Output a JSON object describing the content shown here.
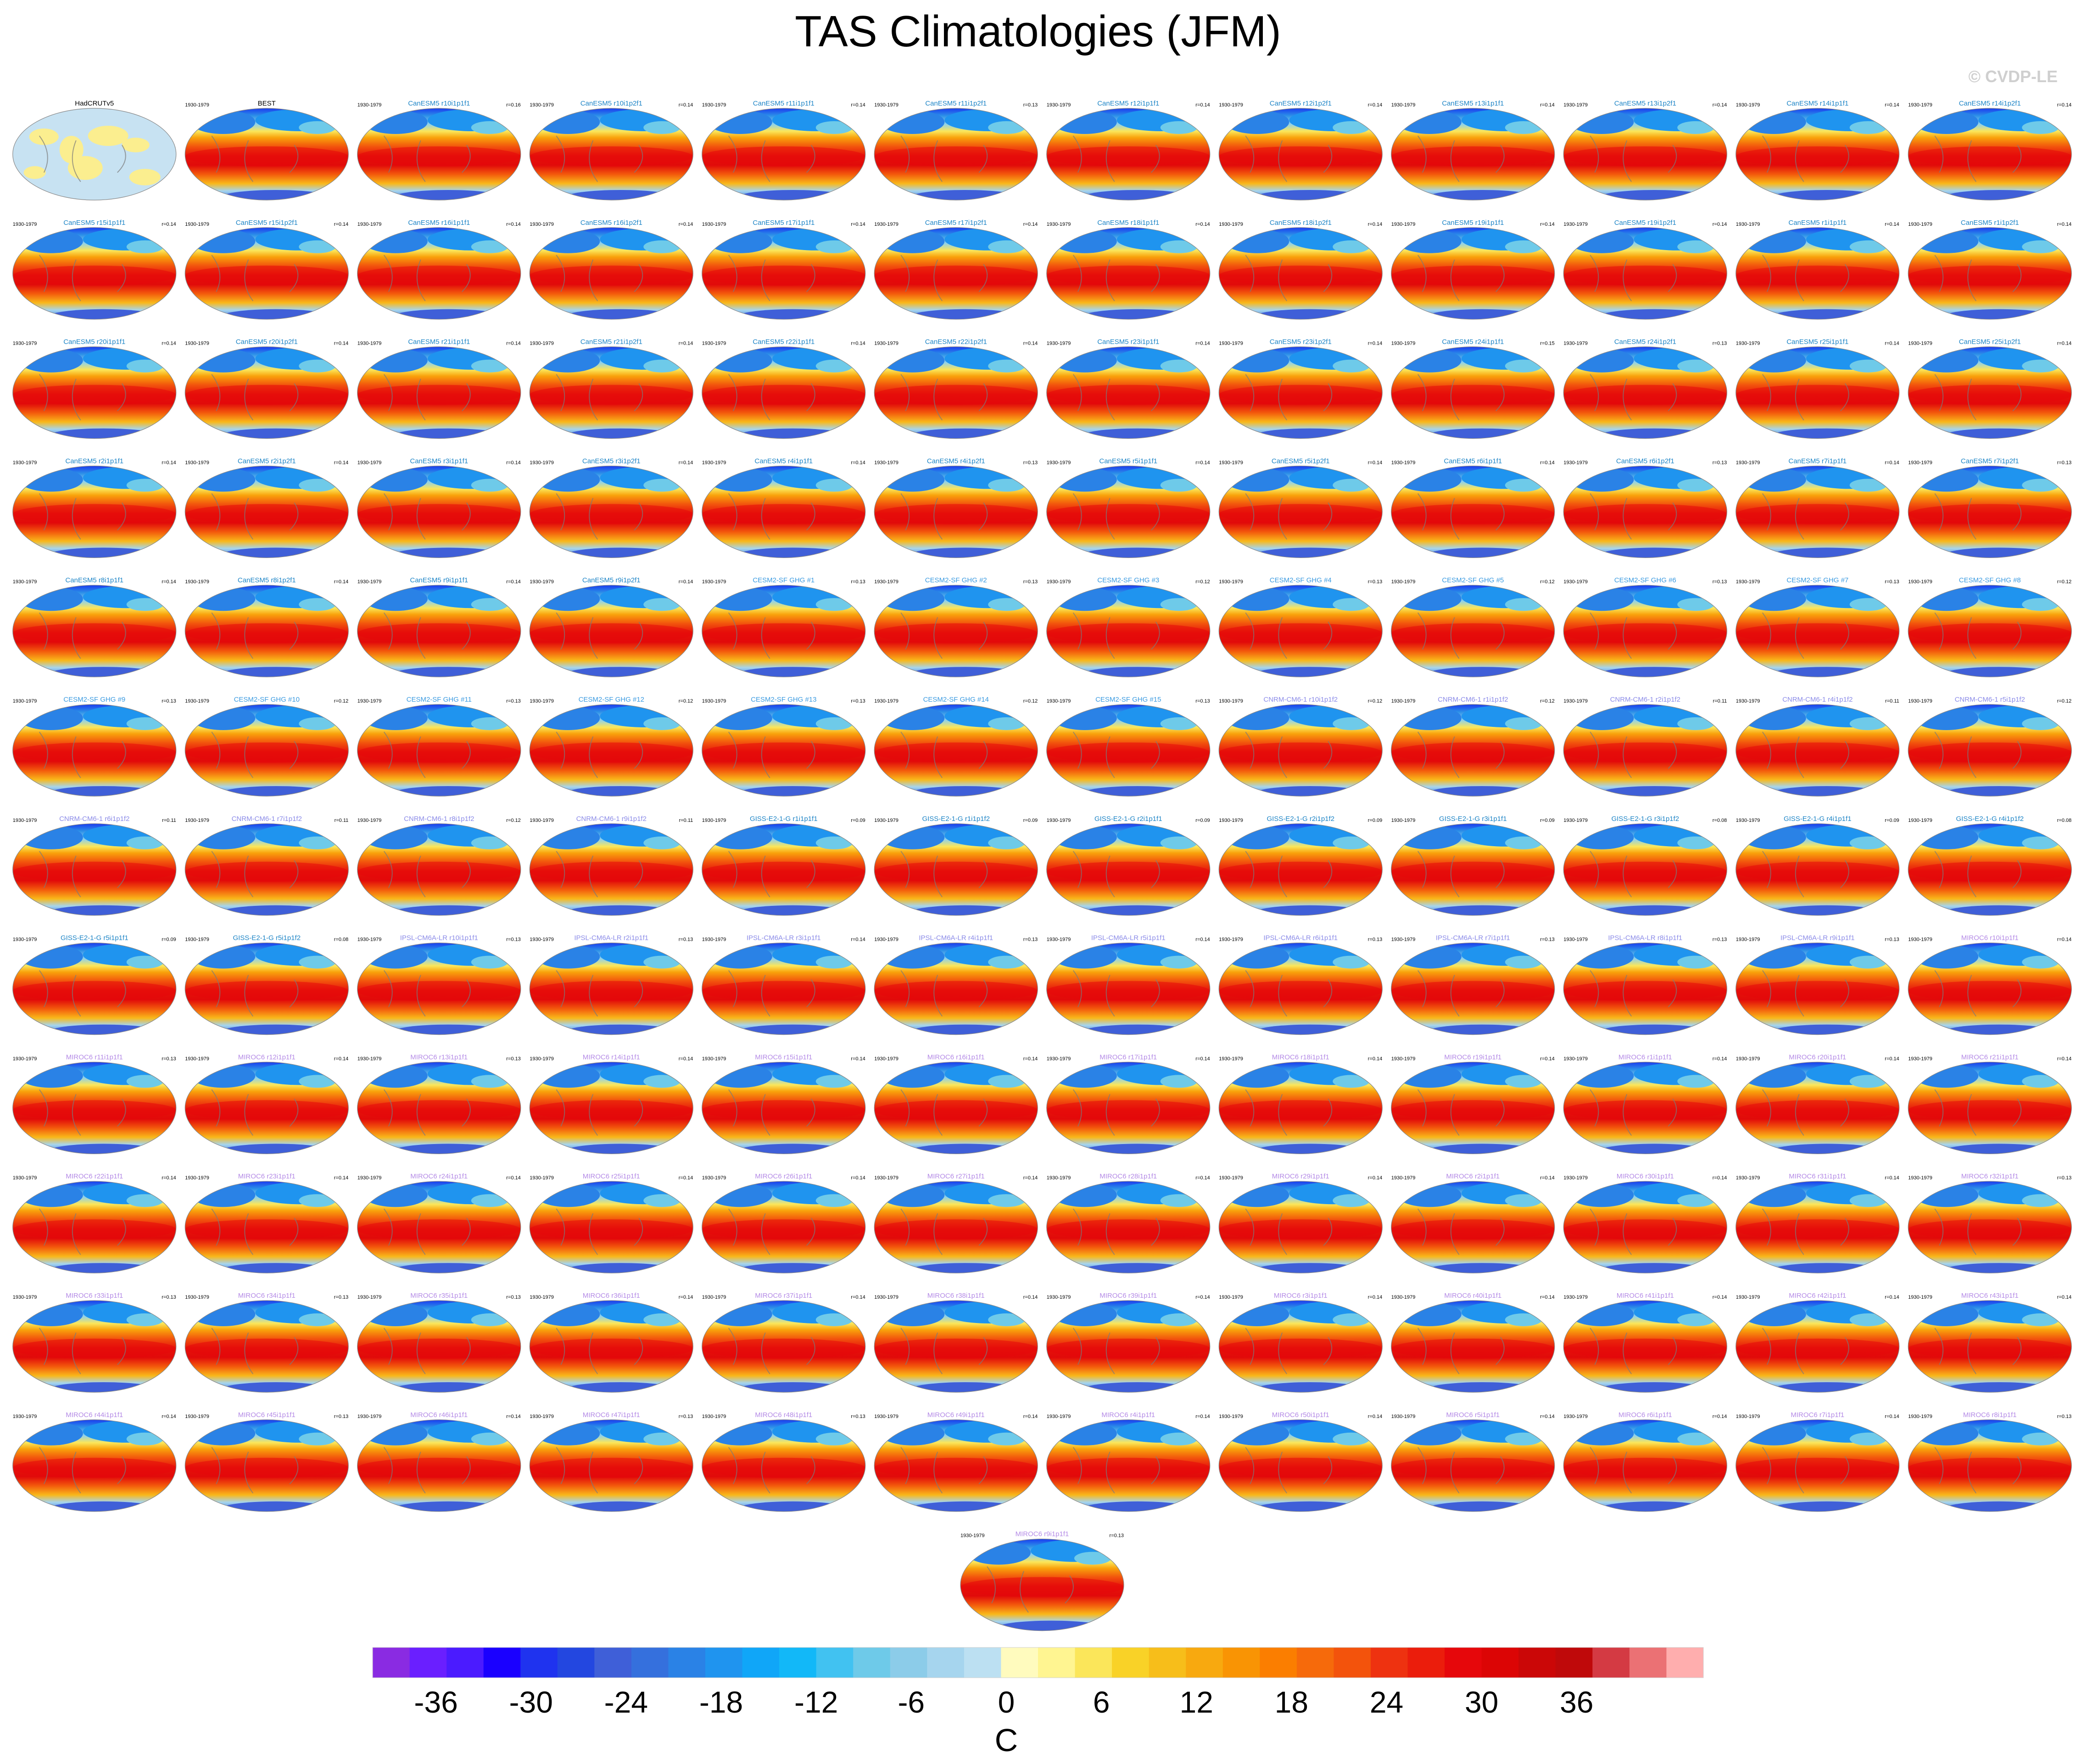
{
  "title": "TAS Climatologies (JFM)",
  "watermark": "© CVDP-LE",
  "period_label": "1930-1979",
  "colors": {
    "background": "#ffffff",
    "land_mask": "#fbee8f",
    "ocean_mask": "#c7e2f2",
    "coast": "#7a7a7a",
    "title_obs": "#000000",
    "title_canesm": "#1c84c6",
    "title_cesm": "#3a9ae0",
    "title_ipsl": "#8b8be8",
    "title_miroc": "#b48ae6"
  },
  "chart_data": {
    "type": "heatmap",
    "variable": "TAS",
    "season": "JFM",
    "colorbar": {
      "unit": "C",
      "ticks": [
        -36,
        -30,
        -24,
        -18,
        -12,
        -6,
        0,
        6,
        12,
        18,
        24,
        30,
        36
      ],
      "min": -40,
      "max": 44,
      "step": 2,
      "colors": [
        "#8a2be2",
        "#6a1fff",
        "#4b1bff",
        "#1a00ff",
        "#1f33ef",
        "#2347e0",
        "#3f5fd8",
        "#3570dd",
        "#2a82e6",
        "#1f94ef",
        "#10a6f8",
        "#12b8f8",
        "#41c2f1",
        "#6ecae9",
        "#8ccce9",
        "#a6d5ee",
        "#bce0f2",
        "#fffbbe",
        "#fff591",
        "#fbe65a",
        "#f9d227",
        "#f7be1a",
        "#f8a90f",
        "#f99404",
        "#fb7e00",
        "#f66a0b",
        "#f3530c",
        "#ee3210",
        "#eb1d0c",
        "#e6070b",
        "#dc0505",
        "#cb0707",
        "#bf090a",
        "#d43a43",
        "#eb7174",
        "#ffaeae"
      ]
    },
    "panels": [
      {
        "title": "HadCRUTv5",
        "r": "",
        "kind": "obs"
      },
      {
        "title": "BEST",
        "r": "",
        "kind": "obs"
      },
      {
        "title": "CanESM5 r10i1p1f1",
        "r": "r=0.16",
        "kind": "canesm"
      },
      {
        "title": "CanESM5 r10i1p2f1",
        "r": "r=0.14",
        "kind": "canesm"
      },
      {
        "title": "CanESM5 r11i1p1f1",
        "r": "r=0.14",
        "kind": "canesm"
      },
      {
        "title": "CanESM5 r11i1p2f1",
        "r": "r=0.13",
        "kind": "canesm"
      },
      {
        "title": "CanESM5 r12i1p1f1",
        "r": "r=0.14",
        "kind": "canesm"
      },
      {
        "title": "CanESM5 r12i1p2f1",
        "r": "r=0.14",
        "kind": "canesm"
      },
      {
        "title": "CanESM5 r13i1p1f1",
        "r": "r=0.14",
        "kind": "canesm"
      },
      {
        "title": "CanESM5 r13i1p2f1",
        "r": "r=0.14",
        "kind": "canesm"
      },
      {
        "title": "CanESM5 r14i1p1f1",
        "r": "r=0.14",
        "kind": "canesm"
      },
      {
        "title": "CanESM5 r14i1p2f1",
        "r": "r=0.14",
        "kind": "canesm"
      },
      {
        "title": "CanESM5 r15i1p1f1",
        "r": "r=0.14",
        "kind": "canesm"
      },
      {
        "title": "CanESM5 r15i1p2f1",
        "r": "r=0.14",
        "kind": "canesm"
      },
      {
        "title": "CanESM5 r16i1p1f1",
        "r": "r=0.14",
        "kind": "canesm"
      },
      {
        "title": "CanESM5 r16i1p2f1",
        "r": "r=0.14",
        "kind": "canesm"
      },
      {
        "title": "CanESM5 r17i1p1f1",
        "r": "r=0.14",
        "kind": "canesm"
      },
      {
        "title": "CanESM5 r17i1p2f1",
        "r": "r=0.14",
        "kind": "canesm"
      },
      {
        "title": "CanESM5 r18i1p1f1",
        "r": "r=0.14",
        "kind": "canesm"
      },
      {
        "title": "CanESM5 r18i1p2f1",
        "r": "r=0.14",
        "kind": "canesm"
      },
      {
        "title": "CanESM5 r19i1p1f1",
        "r": "r=0.14",
        "kind": "canesm"
      },
      {
        "title": "CanESM5 r19i1p2f1",
        "r": "r=0.14",
        "kind": "canesm"
      },
      {
        "title": "CanESM5 r1i1p1f1",
        "r": "r=0.14",
        "kind": "canesm"
      },
      {
        "title": "CanESM5 r1i1p2f1",
        "r": "r=0.14",
        "kind": "canesm"
      },
      {
        "title": "CanESM5 r20i1p1f1",
        "r": "r=0.14",
        "kind": "canesm"
      },
      {
        "title": "CanESM5 r20i1p2f1",
        "r": "r=0.14",
        "kind": "canesm"
      },
      {
        "title": "CanESM5 r21i1p1f1",
        "r": "r=0.14",
        "kind": "canesm"
      },
      {
        "title": "CanESM5 r21i1p2f1",
        "r": "r=0.14",
        "kind": "canesm"
      },
      {
        "title": "CanESM5 r22i1p1f1",
        "r": "r=0.14",
        "kind": "canesm"
      },
      {
        "title": "CanESM5 r22i1p2f1",
        "r": "r=0.14",
        "kind": "canesm"
      },
      {
        "title": "CanESM5 r23i1p1f1",
        "r": "r=0.14",
        "kind": "canesm"
      },
      {
        "title": "CanESM5 r23i1p2f1",
        "r": "r=0.14",
        "kind": "canesm"
      },
      {
        "title": "CanESM5 r24i1p1f1",
        "r": "r=0.15",
        "kind": "canesm"
      },
      {
        "title": "CanESM5 r24i1p2f1",
        "r": "r=0.13",
        "kind": "canesm"
      },
      {
        "title": "CanESM5 r25i1p1f1",
        "r": "r=0.14",
        "kind": "canesm"
      },
      {
        "title": "CanESM5 r25i1p2f1",
        "r": "r=0.14",
        "kind": "canesm"
      },
      {
        "title": "CanESM5 r2i1p1f1",
        "r": "r=0.14",
        "kind": "canesm"
      },
      {
        "title": "CanESM5 r2i1p2f1",
        "r": "r=0.14",
        "kind": "canesm"
      },
      {
        "title": "CanESM5 r3i1p1f1",
        "r": "r=0.14",
        "kind": "canesm"
      },
      {
        "title": "CanESM5 r3i1p2f1",
        "r": "r=0.14",
        "kind": "canesm"
      },
      {
        "title": "CanESM5 r4i1p1f1",
        "r": "r=0.14",
        "kind": "canesm"
      },
      {
        "title": "CanESM5 r4i1p2f1",
        "r": "r=0.13",
        "kind": "canesm"
      },
      {
        "title": "CanESM5 r5i1p1f1",
        "r": "r=0.14",
        "kind": "canesm"
      },
      {
        "title": "CanESM5 r5i1p2f1",
        "r": "r=0.14",
        "kind": "canesm"
      },
      {
        "title": "CanESM5 r6i1p1f1",
        "r": "r=0.14",
        "kind": "canesm"
      },
      {
        "title": "CanESM5 r6i1p2f1",
        "r": "r=0.13",
        "kind": "canesm"
      },
      {
        "title": "CanESM5 r7i1p1f1",
        "r": "r=0.14",
        "kind": "canesm"
      },
      {
        "title": "CanESM5 r7i1p2f1",
        "r": "r=0.13",
        "kind": "canesm"
      },
      {
        "title": "CanESM5 r8i1p1f1",
        "r": "r=0.14",
        "kind": "canesm"
      },
      {
        "title": "CanESM5 r8i1p2f1",
        "r": "r=0.14",
        "kind": "canesm"
      },
      {
        "title": "CanESM5 r9i1p1f1",
        "r": "r=0.14",
        "kind": "canesm"
      },
      {
        "title": "CanESM5 r9i1p2f1",
        "r": "r=0.14",
        "kind": "canesm"
      },
      {
        "title": "CESM2-SF GHG #1",
        "r": "r=0.13",
        "kind": "cesm"
      },
      {
        "title": "CESM2-SF GHG #2",
        "r": "r=0.13",
        "kind": "cesm"
      },
      {
        "title": "CESM2-SF GHG #3",
        "r": "r=0.12",
        "kind": "cesm"
      },
      {
        "title": "CESM2-SF GHG #4",
        "r": "r=0.13",
        "kind": "cesm"
      },
      {
        "title": "CESM2-SF GHG #5",
        "r": "r=0.12",
        "kind": "cesm"
      },
      {
        "title": "CESM2-SF GHG #6",
        "r": "r=0.13",
        "kind": "cesm"
      },
      {
        "title": "CESM2-SF GHG #7",
        "r": "r=0.13",
        "kind": "cesm"
      },
      {
        "title": "CESM2-SF GHG #8",
        "r": "r=0.12",
        "kind": "cesm"
      },
      {
        "title": "CESM2-SF GHG #9",
        "r": "r=0.13",
        "kind": "cesm"
      },
      {
        "title": "CESM2-SF GHG #10",
        "r": "r=0.12",
        "kind": "cesm"
      },
      {
        "title": "CESM2-SF GHG #11",
        "r": "r=0.13",
        "kind": "cesm"
      },
      {
        "title": "CESM2-SF GHG #12",
        "r": "r=0.12",
        "kind": "cesm"
      },
      {
        "title": "CESM2-SF GHG #13",
        "r": "r=0.13",
        "kind": "cesm"
      },
      {
        "title": "CESM2-SF GHG #14",
        "r": "r=0.12",
        "kind": "cesm"
      },
      {
        "title": "CESM2-SF GHG #15",
        "r": "r=0.13",
        "kind": "cesm"
      },
      {
        "title": "CNRM-CM6-1 r10i1p1f2",
        "r": "r=0.12",
        "kind": "cnrm"
      },
      {
        "title": "CNRM-CM6-1 r1i1p1f2",
        "r": "r=0.12",
        "kind": "cnrm"
      },
      {
        "title": "CNRM-CM6-1 r2i1p1f2",
        "r": "r=0.11",
        "kind": "cnrm"
      },
      {
        "title": "CNRM-CM6-1 r4i1p1f2",
        "r": "r=0.11",
        "kind": "cnrm"
      },
      {
        "title": "CNRM-CM6-1 r5i1p1f2",
        "r": "r=0.12",
        "kind": "cnrm"
      },
      {
        "title": "CNRM-CM6-1 r6i1p1f2",
        "r": "r=0.11",
        "kind": "cnrm"
      },
      {
        "title": "CNRM-CM6-1 r7i1p1f2",
        "r": "r=0.11",
        "kind": "cnrm"
      },
      {
        "title": "CNRM-CM6-1 r8i1p1f2",
        "r": "r=0.12",
        "kind": "cnrm"
      },
      {
        "title": "CNRM-CM6-1 r9i1p1f2",
        "r": "r=0.11",
        "kind": "cnrm"
      },
      {
        "title": "GISS-E2-1-G r1i1p1f1",
        "r": "r=0.09",
        "kind": "giss"
      },
      {
        "title": "GISS-E2-1-G r1i1p1f2",
        "r": "r=0.09",
        "kind": "giss"
      },
      {
        "title": "GISS-E2-1-G r2i1p1f1",
        "r": "r=0.09",
        "kind": "giss"
      },
      {
        "title": "GISS-E2-1-G r2i1p1f2",
        "r": "r=0.09",
        "kind": "giss"
      },
      {
        "title": "GISS-E2-1-G r3i1p1f1",
        "r": "r=0.09",
        "kind": "giss"
      },
      {
        "title": "GISS-E2-1-G r3i1p1f2",
        "r": "r=0.08",
        "kind": "giss"
      },
      {
        "title": "GISS-E2-1-G r4i1p1f1",
        "r": "r=0.09",
        "kind": "giss"
      },
      {
        "title": "GISS-E2-1-G r4i1p1f2",
        "r": "r=0.08",
        "kind": "giss"
      },
      {
        "title": "GISS-E2-1-G r5i1p1f1",
        "r": "r=0.09",
        "kind": "giss"
      },
      {
        "title": "GISS-E2-1-G r5i1p1f2",
        "r": "r=0.08",
        "kind": "giss"
      },
      {
        "title": "IPSL-CM6A-LR r10i1p1f1",
        "r": "r=0.13",
        "kind": "ipsl"
      },
      {
        "title": "IPSL-CM6A-LR r2i1p1f1",
        "r": "r=0.13",
        "kind": "ipsl"
      },
      {
        "title": "IPSL-CM6A-LR r3i1p1f1",
        "r": "r=0.14",
        "kind": "ipsl"
      },
      {
        "title": "IPSL-CM6A-LR r4i1p1f1",
        "r": "r=0.13",
        "kind": "ipsl"
      },
      {
        "title": "IPSL-CM6A-LR r5i1p1f1",
        "r": "r=0.14",
        "kind": "ipsl"
      },
      {
        "title": "IPSL-CM6A-LR r6i1p1f1",
        "r": "r=0.13",
        "kind": "ipsl"
      },
      {
        "title": "IPSL-CM6A-LR r7i1p1f1",
        "r": "r=0.13",
        "kind": "ipsl"
      },
      {
        "title": "IPSL-CM6A-LR r8i1p1f1",
        "r": "r=0.13",
        "kind": "ipsl"
      },
      {
        "title": "IPSL-CM6A-LR r9i1p1f1",
        "r": "r=0.13",
        "kind": "ipsl"
      },
      {
        "title": "MIROC6 r10i1p1f1",
        "r": "r=0.14",
        "kind": "miroc"
      },
      {
        "title": "MIROC6 r11i1p1f1",
        "r": "r=0.13",
        "kind": "miroc"
      },
      {
        "title": "MIROC6 r12i1p1f1",
        "r": "r=0.14",
        "kind": "miroc"
      },
      {
        "title": "MIROC6 r13i1p1f1",
        "r": "r=0.13",
        "kind": "miroc"
      },
      {
        "title": "MIROC6 r14i1p1f1",
        "r": "r=0.14",
        "kind": "miroc"
      },
      {
        "title": "MIROC6 r15i1p1f1",
        "r": "r=0.14",
        "kind": "miroc"
      },
      {
        "title": "MIROC6 r16i1p1f1",
        "r": "r=0.14",
        "kind": "miroc"
      },
      {
        "title": "MIROC6 r17i1p1f1",
        "r": "r=0.14",
        "kind": "miroc"
      },
      {
        "title": "MIROC6 r18i1p1f1",
        "r": "r=0.14",
        "kind": "miroc"
      },
      {
        "title": "MIROC6 r19i1p1f1",
        "r": "r=0.14",
        "kind": "miroc"
      },
      {
        "title": "MIROC6 r1i1p1f1",
        "r": "r=0.14",
        "kind": "miroc"
      },
      {
        "title": "MIROC6 r20i1p1f1",
        "r": "r=0.14",
        "kind": "miroc"
      },
      {
        "title": "MIROC6 r21i1p1f1",
        "r": "r=0.14",
        "kind": "miroc"
      },
      {
        "title": "MIROC6 r22i1p1f1",
        "r": "r=0.14",
        "kind": "miroc"
      },
      {
        "title": "MIROC6 r23i1p1f1",
        "r": "r=0.14",
        "kind": "miroc"
      },
      {
        "title": "MIROC6 r24i1p1f1",
        "r": "r=0.14",
        "kind": "miroc"
      },
      {
        "title": "MIROC6 r25i1p1f1",
        "r": "r=0.14",
        "kind": "miroc"
      },
      {
        "title": "MIROC6 r26i1p1f1",
        "r": "r=0.14",
        "kind": "miroc"
      },
      {
        "title": "MIROC6 r27i1p1f1",
        "r": "r=0.14",
        "kind": "miroc"
      },
      {
        "title": "MIROC6 r28i1p1f1",
        "r": "r=0.14",
        "kind": "miroc"
      },
      {
        "title": "MIROC6 r29i1p1f1",
        "r": "r=0.14",
        "kind": "miroc"
      },
      {
        "title": "MIROC6 r2i1p1f1",
        "r": "r=0.14",
        "kind": "miroc"
      },
      {
        "title": "MIROC6 r30i1p1f1",
        "r": "r=0.14",
        "kind": "miroc"
      },
      {
        "title": "MIROC6 r31i1p1f1",
        "r": "r=0.14",
        "kind": "miroc"
      },
      {
        "title": "MIROC6 r32i1p1f1",
        "r": "r=0.13",
        "kind": "miroc"
      },
      {
        "title": "MIROC6 r33i1p1f1",
        "r": "r=0.13",
        "kind": "miroc"
      },
      {
        "title": "MIROC6 r34i1p1f1",
        "r": "r=0.13",
        "kind": "miroc"
      },
      {
        "title": "MIROC6 r35i1p1f1",
        "r": "r=0.13",
        "kind": "miroc"
      },
      {
        "title": "MIROC6 r36i1p1f1",
        "r": "r=0.14",
        "kind": "miroc"
      },
      {
        "title": "MIROC6 r37i1p1f1",
        "r": "r=0.14",
        "kind": "miroc"
      },
      {
        "title": "MIROC6 r38i1p1f1",
        "r": "r=0.14",
        "kind": "miroc"
      },
      {
        "title": "MIROC6 r39i1p1f1",
        "r": "r=0.14",
        "kind": "miroc"
      },
      {
        "title": "MIROC6 r3i1p1f1",
        "r": "r=0.14",
        "kind": "miroc"
      },
      {
        "title": "MIROC6 r40i1p1f1",
        "r": "r=0.14",
        "kind": "miroc"
      },
      {
        "title": "MIROC6 r41i1p1f1",
        "r": "r=0.14",
        "kind": "miroc"
      },
      {
        "title": "MIROC6 r42i1p1f1",
        "r": "r=0.14",
        "kind": "miroc"
      },
      {
        "title": "MIROC6 r43i1p1f1",
        "r": "r=0.14",
        "kind": "miroc"
      },
      {
        "title": "MIROC6 r44i1p1f1",
        "r": "r=0.14",
        "kind": "miroc"
      },
      {
        "title": "MIROC6 r45i1p1f1",
        "r": "r=0.13",
        "kind": "miroc"
      },
      {
        "title": "MIROC6 r46i1p1f1",
        "r": "r=0.14",
        "kind": "miroc"
      },
      {
        "title": "MIROC6 r47i1p1f1",
        "r": "r=0.13",
        "kind": "miroc"
      },
      {
        "title": "MIROC6 r48i1p1f1",
        "r": "r=0.13",
        "kind": "miroc"
      },
      {
        "title": "MIROC6 r49i1p1f1",
        "r": "r=0.14",
        "kind": "miroc"
      },
      {
        "title": "MIROC6 r4i1p1f1",
        "r": "r=0.14",
        "kind": "miroc"
      },
      {
        "title": "MIROC6 r50i1p1f1",
        "r": "r=0.14",
        "kind": "miroc"
      },
      {
        "title": "MIROC6 r5i1p1f1",
        "r": "r=0.14",
        "kind": "miroc"
      },
      {
        "title": "MIROC6 r6i1p1f1",
        "r": "r=0.14",
        "kind": "miroc"
      },
      {
        "title": "MIROC6 r7i1p1f1",
        "r": "r=0.14",
        "kind": "miroc"
      },
      {
        "title": "MIROC6 r8i1p1f1",
        "r": "r=0.13",
        "kind": "miroc"
      },
      {
        "title": "MIROC6 r9i1p1f1",
        "r": "r=0.13",
        "kind": "miroc"
      }
    ]
  }
}
